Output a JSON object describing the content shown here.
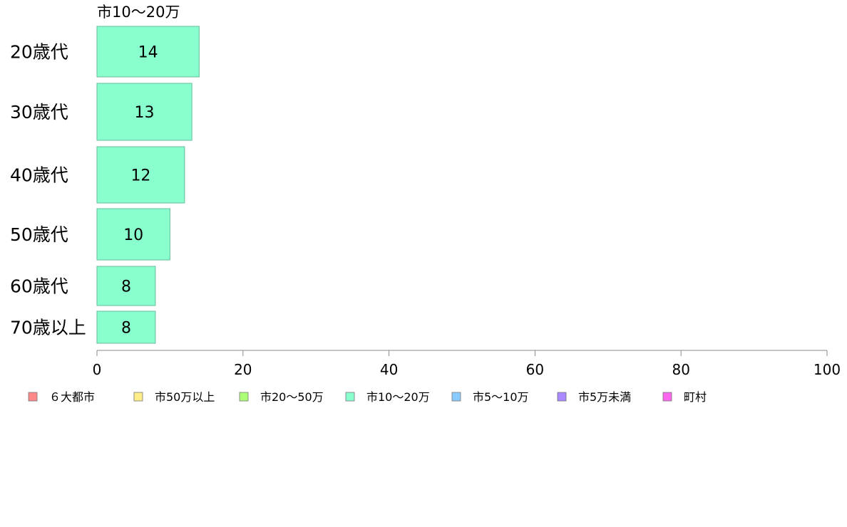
{
  "chart_data": {
    "type": "bar",
    "orientation": "horizontal",
    "title": "",
    "series_label": "市10〜20万",
    "categories": [
      "20歳代",
      "30歳代",
      "40歳代",
      "50歳代",
      "60歳代",
      "70歳以上"
    ],
    "series": [
      {
        "name": "市10〜20万",
        "values": [
          14,
          13,
          12,
          10,
          8,
          8
        ],
        "color": "#88ffcc"
      }
    ],
    "xlim": [
      0,
      100
    ],
    "xticks": [
      0,
      20,
      40,
      60,
      80,
      100
    ],
    "xlabel": "",
    "ylabel": "",
    "grid": false,
    "legend": {
      "position": "bottom-left",
      "entries": [
        {
          "label": "６大都市",
          "color": "#ff8888"
        },
        {
          "label": "市50万以上",
          "color": "#ffee88"
        },
        {
          "label": "市20〜50万",
          "color": "#aaff77"
        },
        {
          "label": "市10〜20万",
          "color": "#88ffcc"
        },
        {
          "label": "市5〜10万",
          "color": "#88ccff"
        },
        {
          "label": "市5万未満",
          "color": "#aa88ff"
        },
        {
          "label": "町村",
          "color": "#ff66ee"
        }
      ]
    }
  }
}
